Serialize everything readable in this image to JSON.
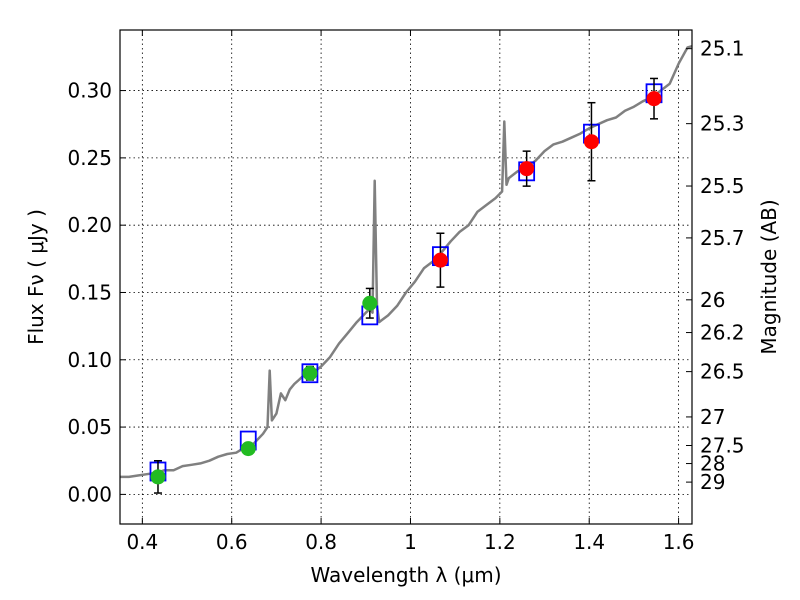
{
  "chart_data": {
    "type": "scatter",
    "xlabel": "Wavelength  λ (μm)",
    "ylabel": "Flux  Fν  ( μJy )",
    "ylabel_right": "Magnitude (AB)",
    "xlim": [
      0.35,
      1.63
    ],
    "ylim": [
      -0.022,
      0.345
    ],
    "grid": true,
    "x_ticks": [
      {
        "value": 0.4,
        "label": "0.4"
      },
      {
        "value": 0.6,
        "label": "0.6"
      },
      {
        "value": 0.8,
        "label": "0.8"
      },
      {
        "value": 1.0,
        "label": "1"
      },
      {
        "value": 1.2,
        "label": "1.2"
      },
      {
        "value": 1.4,
        "label": "1.4"
      },
      {
        "value": 1.6,
        "label": "1.6"
      }
    ],
    "y_ticks": [
      {
        "value": 0.0,
        "label": "0.00"
      },
      {
        "value": 0.05,
        "label": "0.05"
      },
      {
        "value": 0.1,
        "label": "0.10"
      },
      {
        "value": 0.15,
        "label": "0.15"
      },
      {
        "value": 0.2,
        "label": "0.20"
      },
      {
        "value": 0.25,
        "label": "0.25"
      },
      {
        "value": 0.3,
        "label": "0.30"
      }
    ],
    "y_right_ticks": [
      {
        "mag": 25.1,
        "label": "25.1"
      },
      {
        "mag": 25.3,
        "label": "25.3"
      },
      {
        "mag": 25.5,
        "label": "25.5"
      },
      {
        "mag": 25.7,
        "label": "25.7"
      },
      {
        "mag": 26,
        "label": "26"
      },
      {
        "mag": 26.2,
        "label": "26.2"
      },
      {
        "mag": 26.5,
        "label": "26.5"
      },
      {
        "mag": 27,
        "label": "27"
      },
      {
        "mag": 27.5,
        "label": "27.5"
      },
      {
        "mag": 28,
        "label": "28"
      },
      {
        "mag": 29,
        "label": "29"
      }
    ],
    "series": [
      {
        "kind": "spectrum",
        "color": "#808080",
        "points": [
          [
            0.35,
            0.013
          ],
          [
            0.37,
            0.013
          ],
          [
            0.39,
            0.014
          ],
          [
            0.41,
            0.015
          ],
          [
            0.43,
            0.016
          ],
          [
            0.45,
            0.018
          ],
          [
            0.47,
            0.018
          ],
          [
            0.49,
            0.021
          ],
          [
            0.51,
            0.022
          ],
          [
            0.53,
            0.023
          ],
          [
            0.55,
            0.025
          ],
          [
            0.57,
            0.028
          ],
          [
            0.59,
            0.03
          ],
          [
            0.61,
            0.031
          ],
          [
            0.63,
            0.035
          ],
          [
            0.65,
            0.038
          ],
          [
            0.67,
            0.045
          ],
          [
            0.68,
            0.05
          ],
          [
            0.685,
            0.092
          ],
          [
            0.69,
            0.055
          ],
          [
            0.7,
            0.06
          ],
          [
            0.71,
            0.075
          ],
          [
            0.72,
            0.07
          ],
          [
            0.73,
            0.078
          ],
          [
            0.74,
            0.082
          ],
          [
            0.75,
            0.085
          ],
          [
            0.76,
            0.088
          ],
          [
            0.78,
            0.09
          ],
          [
            0.8,
            0.095
          ],
          [
            0.82,
            0.102
          ],
          [
            0.84,
            0.112
          ],
          [
            0.86,
            0.12
          ],
          [
            0.88,
            0.128
          ],
          [
            0.9,
            0.135
          ],
          [
            0.91,
            0.138
          ],
          [
            0.915,
            0.135
          ],
          [
            0.92,
            0.233
          ],
          [
            0.925,
            0.14
          ],
          [
            0.93,
            0.128
          ],
          [
            0.95,
            0.133
          ],
          [
            0.97,
            0.14
          ],
          [
            0.99,
            0.15
          ],
          [
            1.01,
            0.158
          ],
          [
            1.03,
            0.168
          ],
          [
            1.05,
            0.173
          ],
          [
            1.07,
            0.18
          ],
          [
            1.09,
            0.188
          ],
          [
            1.11,
            0.195
          ],
          [
            1.13,
            0.2
          ],
          [
            1.15,
            0.21
          ],
          [
            1.17,
            0.215
          ],
          [
            1.19,
            0.22
          ],
          [
            1.205,
            0.225
          ],
          [
            1.21,
            0.277
          ],
          [
            1.215,
            0.23
          ],
          [
            1.22,
            0.235
          ],
          [
            1.24,
            0.24
          ],
          [
            1.26,
            0.243
          ],
          [
            1.28,
            0.248
          ],
          [
            1.3,
            0.255
          ],
          [
            1.32,
            0.26
          ],
          [
            1.34,
            0.262
          ],
          [
            1.36,
            0.265
          ],
          [
            1.38,
            0.268
          ],
          [
            1.4,
            0.272
          ],
          [
            1.42,
            0.275
          ],
          [
            1.44,
            0.278
          ],
          [
            1.46,
            0.28
          ],
          [
            1.48,
            0.285
          ],
          [
            1.5,
            0.288
          ],
          [
            1.52,
            0.292
          ],
          [
            1.54,
            0.295
          ],
          [
            1.56,
            0.3
          ],
          [
            1.58,
            0.305
          ],
          [
            1.6,
            0.32
          ],
          [
            1.62,
            0.332
          ],
          [
            1.63,
            0.333
          ]
        ]
      },
      {
        "kind": "model_boxes",
        "color": "#0000ff",
        "points": [
          [
            0.435,
            0.017
          ],
          [
            0.637,
            0.04
          ],
          [
            0.775,
            0.09
          ],
          [
            0.909,
            0.133
          ],
          [
            1.067,
            0.177
          ],
          [
            1.26,
            0.24
          ],
          [
            1.405,
            0.268
          ],
          [
            1.545,
            0.298
          ]
        ]
      },
      {
        "kind": "observed",
        "colors": {
          "optical": "#22bb22",
          "infrared": "#ff0000"
        },
        "points": [
          {
            "x": 0.435,
            "y": 0.013,
            "err": 0.012,
            "band": "optical"
          },
          {
            "x": 0.637,
            "y": 0.034,
            "err": 0.004,
            "band": "optical"
          },
          {
            "x": 0.775,
            "y": 0.09,
            "err": 0.005,
            "band": "optical"
          },
          {
            "x": 0.909,
            "y": 0.142,
            "err": 0.011,
            "band": "optical"
          },
          {
            "x": 1.067,
            "y": 0.174,
            "err": 0.02,
            "band": "infrared"
          },
          {
            "x": 1.26,
            "y": 0.242,
            "err": 0.013,
            "band": "infrared"
          },
          {
            "x": 1.405,
            "y": 0.262,
            "err": 0.029,
            "band": "infrared"
          },
          {
            "x": 1.545,
            "y": 0.294,
            "err": 0.015,
            "band": "infrared"
          }
        ]
      }
    ]
  }
}
